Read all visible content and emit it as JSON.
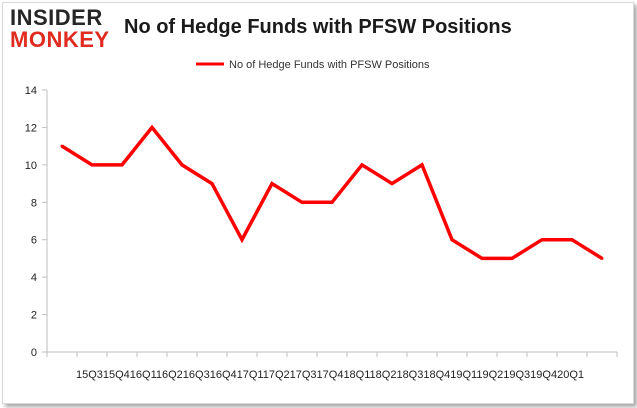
{
  "logo": {
    "line1": "INSIDER",
    "line2": "MONKEY"
  },
  "chart_data": {
    "type": "line",
    "title": "No of Hedge Funds with PFSW Positions",
    "categories": [
      "2015Q3",
      "2015Q4",
      "2016Q1",
      "2016Q2",
      "2016Q3",
      "2016Q4",
      "2017Q1",
      "2017Q2",
      "2017Q3",
      "2017Q4",
      "2018Q1",
      "2018Q2",
      "2018Q3",
      "2018Q4",
      "2019Q1",
      "2019Q2",
      "2019Q3",
      "2019Q4",
      "2020Q1"
    ],
    "xtick_text": "15Q315Q416Q116Q216Q316Q417Q117Q217Q317Q418Q118Q218Q318Q419Q119Q219Q319Q420Q1",
    "series": [
      {
        "name": "No of Hedge Funds with PFSW Positions",
        "color": "#ff0000",
        "values": [
          11,
          10,
          10,
          12,
          10,
          9,
          6,
          9,
          8,
          8,
          10,
          9,
          10,
          6,
          5,
          5,
          6,
          6,
          5
        ]
      }
    ],
    "yticks": [
      0,
      2,
      4,
      6,
      8,
      10,
      12,
      14
    ],
    "ylim": [
      0,
      14
    ],
    "grid": false,
    "legend_position": "top-center",
    "xlabel": "",
    "ylabel": ""
  }
}
